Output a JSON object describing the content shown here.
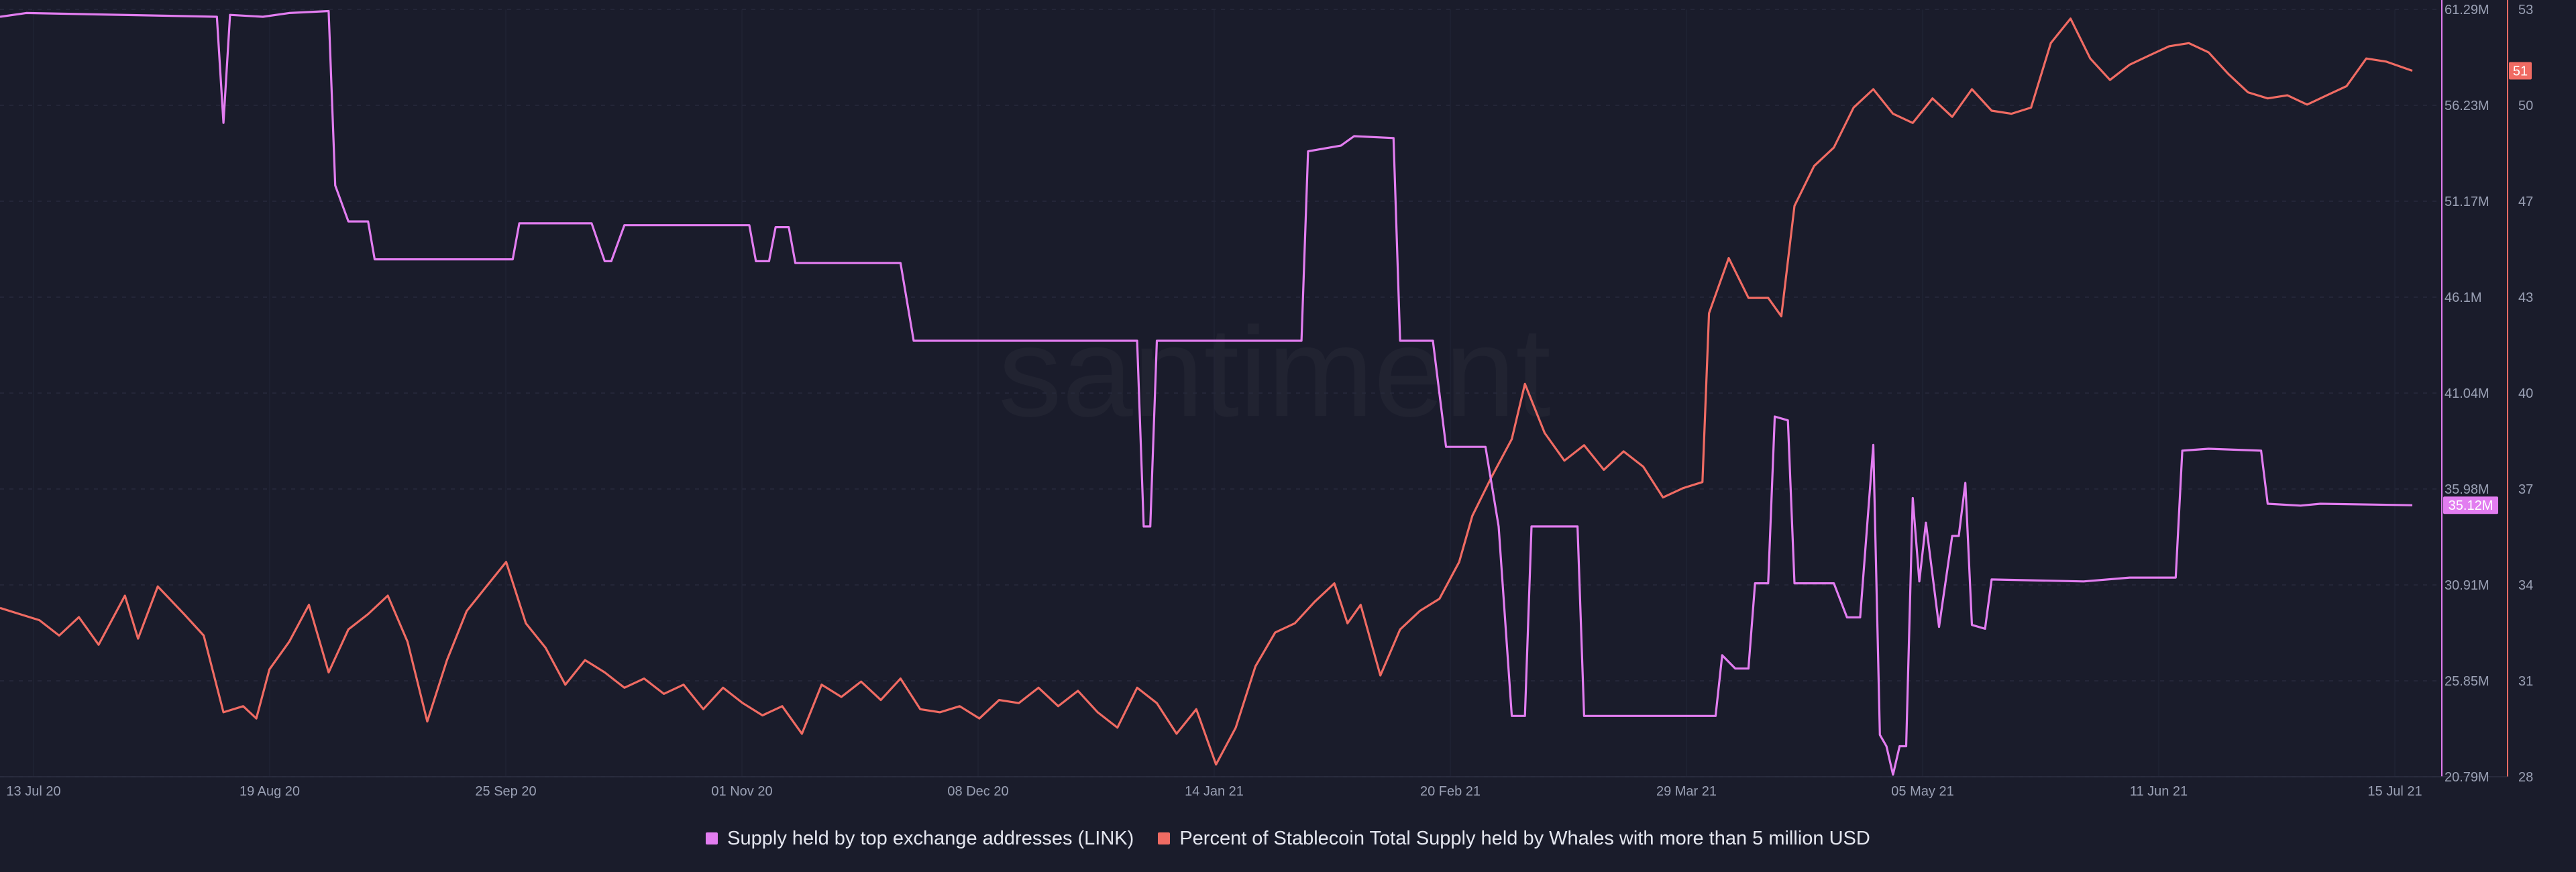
{
  "chart_data": {
    "type": "line",
    "watermark": "santiment",
    "x_ticks": [
      "13 Jul 20",
      "19 Aug 20",
      "25 Sep 20",
      "01 Nov 20",
      "08 Dec 20",
      "14 Jan 21",
      "20 Feb 21",
      "29 Mar 21",
      "05 May 21",
      "11 Jun 21",
      "15 Jul 21"
    ],
    "x_range": [
      "2020-07-13",
      "2021-07-15"
    ],
    "left_axis": {
      "ticks": [
        "61.29M",
        "56.23M",
        "51.17M",
        "46.1M",
        "41.04M",
        "35.98M",
        "30.91M",
        "25.85M",
        "20.79M"
      ],
      "range": [
        20.79,
        61.29
      ],
      "unit": "M"
    },
    "right_axis": {
      "ticks": [
        "53",
        "50",
        "47",
        "43",
        "40",
        "37",
        "34",
        "31",
        "28"
      ],
      "range": [
        28,
        53
      ]
    },
    "series": [
      {
        "name": "Supply held by top exchange addresses (LINK)",
        "color": "#e27df0",
        "axis": "left",
        "current_label": "35.12M",
        "points": [
          [
            "2020-07-13",
            60.9
          ],
          [
            "2020-07-17",
            61.1
          ],
          [
            "2020-08-15",
            60.9
          ],
          [
            "2020-08-16",
            55.3
          ],
          [
            "2020-08-17",
            61.0
          ],
          [
            "2020-08-22",
            60.9
          ],
          [
            "2020-08-26",
            61.1
          ],
          [
            "2020-09-01",
            61.2
          ],
          [
            "2020-09-02",
            52.0
          ],
          [
            "2020-09-04",
            50.1
          ],
          [
            "2020-09-07",
            50.1
          ],
          [
            "2020-09-08",
            48.1
          ],
          [
            "2020-09-29",
            48.1
          ],
          [
            "2020-09-30",
            50.0
          ],
          [
            "2020-10-11",
            50.0
          ],
          [
            "2020-10-13",
            48.0
          ],
          [
            "2020-10-14",
            48.0
          ],
          [
            "2020-10-16",
            49.9
          ],
          [
            "2020-11-04",
            49.9
          ],
          [
            "2020-11-05",
            48.0
          ],
          [
            "2020-11-07",
            48.0
          ],
          [
            "2020-11-08",
            49.8
          ],
          [
            "2020-11-10",
            49.8
          ],
          [
            "2020-11-11",
            47.9
          ],
          [
            "2020-11-27",
            47.9
          ],
          [
            "2020-11-29",
            43.8
          ],
          [
            "2021-01-02",
            43.8
          ],
          [
            "2021-01-03",
            34.0
          ],
          [
            "2021-01-04",
            34.0
          ],
          [
            "2021-01-05",
            43.8
          ],
          [
            "2021-01-27",
            43.8
          ],
          [
            "2021-01-28",
            53.8
          ],
          [
            "2021-02-02",
            54.1
          ],
          [
            "2021-02-04",
            54.6
          ],
          [
            "2021-02-10",
            54.5
          ],
          [
            "2021-02-11",
            43.8
          ],
          [
            "2021-02-16",
            43.8
          ],
          [
            "2021-02-18",
            38.2
          ],
          [
            "2021-02-24",
            38.2
          ],
          [
            "2021-02-26",
            34.0
          ],
          [
            "2021-02-28",
            24.0
          ],
          [
            "2021-03-02",
            24.0
          ],
          [
            "2021-03-03",
            34.0
          ],
          [
            "2021-03-10",
            34.0
          ],
          [
            "2021-03-11",
            24.0
          ],
          [
            "2021-03-31",
            24.0
          ],
          [
            "2021-04-01",
            27.2
          ],
          [
            "2021-04-03",
            26.5
          ],
          [
            "2021-04-05",
            26.5
          ],
          [
            "2021-04-06",
            31.0
          ],
          [
            "2021-04-08",
            31.0
          ],
          [
            "2021-04-09",
            39.8
          ],
          [
            "2021-04-11",
            39.6
          ],
          [
            "2021-04-12",
            31.0
          ],
          [
            "2021-04-18",
            31.0
          ],
          [
            "2021-04-20",
            29.2
          ],
          [
            "2021-04-22",
            29.2
          ],
          [
            "2021-04-24",
            38.3
          ],
          [
            "2021-04-25",
            23.0
          ],
          [
            "2021-04-26",
            22.4
          ],
          [
            "2021-04-27",
            20.9
          ],
          [
            "2021-04-28",
            22.4
          ],
          [
            "2021-04-29",
            22.4
          ],
          [
            "2021-04-30",
            35.5
          ],
          [
            "2021-05-01",
            31.1
          ],
          [
            "2021-05-02",
            34.2
          ],
          [
            "2021-05-04",
            28.7
          ],
          [
            "2021-05-06",
            33.5
          ],
          [
            "2021-05-07",
            33.5
          ],
          [
            "2021-05-08",
            36.3
          ],
          [
            "2021-05-09",
            28.8
          ],
          [
            "2021-05-11",
            28.6
          ],
          [
            "2021-05-12",
            31.2
          ],
          [
            "2021-05-26",
            31.1
          ],
          [
            "2021-06-02",
            31.3
          ],
          [
            "2021-06-09",
            31.3
          ],
          [
            "2021-06-10",
            38.0
          ],
          [
            "2021-06-14",
            38.1
          ],
          [
            "2021-06-22",
            38.0
          ],
          [
            "2021-06-23",
            35.2
          ],
          [
            "2021-06-28",
            35.1
          ],
          [
            "2021-07-01",
            35.2
          ],
          [
            "2021-07-15",
            35.12
          ]
        ]
      },
      {
        "name": "Percent of Stablecoin Total Supply held by Whales with more than 5 million USD",
        "color": "#f06b63",
        "axis": "right",
        "current_label": "51",
        "points": [
          [
            "2020-07-13",
            33.5
          ],
          [
            "2020-07-16",
            33.3
          ],
          [
            "2020-07-19",
            33.1
          ],
          [
            "2020-07-22",
            32.6
          ],
          [
            "2020-07-25",
            33.2
          ],
          [
            "2020-07-28",
            32.3
          ],
          [
            "2020-08-01",
            33.9
          ],
          [
            "2020-08-03",
            32.5
          ],
          [
            "2020-08-06",
            34.2
          ],
          [
            "2020-08-10",
            33.3
          ],
          [
            "2020-08-13",
            32.6
          ],
          [
            "2020-08-16",
            30.1
          ],
          [
            "2020-08-19",
            30.3
          ],
          [
            "2020-08-21",
            29.9
          ],
          [
            "2020-08-23",
            31.5
          ],
          [
            "2020-08-26",
            32.4
          ],
          [
            "2020-08-29",
            33.6
          ],
          [
            "2020-09-01",
            31.4
          ],
          [
            "2020-09-04",
            32.8
          ],
          [
            "2020-09-07",
            33.3
          ],
          [
            "2020-09-10",
            33.9
          ],
          [
            "2020-09-13",
            32.4
          ],
          [
            "2020-09-16",
            29.8
          ],
          [
            "2020-09-19",
            31.8
          ],
          [
            "2020-09-22",
            33.4
          ],
          [
            "2020-09-25",
            34.2
          ],
          [
            "2020-09-28",
            35.0
          ],
          [
            "2020-10-01",
            33.0
          ],
          [
            "2020-10-04",
            32.2
          ],
          [
            "2020-10-07",
            31.0
          ],
          [
            "2020-10-10",
            31.8
          ],
          [
            "2020-10-13",
            31.4
          ],
          [
            "2020-10-16",
            30.9
          ],
          [
            "2020-10-19",
            31.2
          ],
          [
            "2020-10-22",
            30.7
          ],
          [
            "2020-10-25",
            31.0
          ],
          [
            "2020-10-28",
            30.2
          ],
          [
            "2020-10-31",
            30.9
          ],
          [
            "2020-11-03",
            30.4
          ],
          [
            "2020-11-06",
            30.0
          ],
          [
            "2020-11-09",
            30.3
          ],
          [
            "2020-11-12",
            29.4
          ],
          [
            "2020-11-15",
            31.0
          ],
          [
            "2020-11-18",
            30.6
          ],
          [
            "2020-11-21",
            31.1
          ],
          [
            "2020-11-24",
            30.5
          ],
          [
            "2020-11-27",
            31.2
          ],
          [
            "2020-11-30",
            30.2
          ],
          [
            "2020-12-03",
            30.1
          ],
          [
            "2020-12-06",
            30.3
          ],
          [
            "2020-12-09",
            29.9
          ],
          [
            "2020-12-12",
            30.5
          ],
          [
            "2020-12-15",
            30.4
          ],
          [
            "2020-12-18",
            30.9
          ],
          [
            "2020-12-21",
            30.3
          ],
          [
            "2020-12-24",
            30.8
          ],
          [
            "2020-12-27",
            30.1
          ],
          [
            "2020-12-30",
            29.6
          ],
          [
            "2021-01-02",
            30.9
          ],
          [
            "2021-01-05",
            30.4
          ],
          [
            "2021-01-08",
            29.4
          ],
          [
            "2021-01-11",
            30.2
          ],
          [
            "2021-01-14",
            28.4
          ],
          [
            "2021-01-17",
            29.6
          ],
          [
            "2021-01-20",
            31.6
          ],
          [
            "2021-01-23",
            32.7
          ],
          [
            "2021-01-26",
            33.0
          ],
          [
            "2021-01-29",
            33.7
          ],
          [
            "2021-02-01",
            34.3
          ],
          [
            "2021-02-03",
            33.0
          ],
          [
            "2021-02-05",
            33.6
          ],
          [
            "2021-02-08",
            31.3
          ],
          [
            "2021-02-11",
            32.8
          ],
          [
            "2021-02-14",
            33.4
          ],
          [
            "2021-02-17",
            33.8
          ],
          [
            "2021-02-20",
            35.0
          ],
          [
            "2021-02-22",
            36.5
          ],
          [
            "2021-02-25",
            37.8
          ],
          [
            "2021-02-28",
            39.0
          ],
          [
            "2021-03-02",
            40.8
          ],
          [
            "2021-03-05",
            39.2
          ],
          [
            "2021-03-08",
            38.3
          ],
          [
            "2021-03-11",
            38.8
          ],
          [
            "2021-03-14",
            38.0
          ],
          [
            "2021-03-17",
            38.6
          ],
          [
            "2021-03-20",
            38.1
          ],
          [
            "2021-03-23",
            37.1
          ],
          [
            "2021-03-26",
            37.4
          ],
          [
            "2021-03-29",
            37.6
          ],
          [
            "2021-03-30",
            43.1
          ],
          [
            "2021-04-02",
            44.9
          ],
          [
            "2021-04-05",
            43.6
          ],
          [
            "2021-04-08",
            43.6
          ],
          [
            "2021-04-10",
            43.0
          ],
          [
            "2021-04-12",
            46.6
          ],
          [
            "2021-04-15",
            47.9
          ],
          [
            "2021-04-18",
            48.5
          ],
          [
            "2021-04-21",
            49.8
          ],
          [
            "2021-04-24",
            50.4
          ],
          [
            "2021-04-27",
            49.6
          ],
          [
            "2021-04-30",
            49.3
          ],
          [
            "2021-05-03",
            50.1
          ],
          [
            "2021-05-06",
            49.5
          ],
          [
            "2021-05-09",
            50.4
          ],
          [
            "2021-05-12",
            49.7
          ],
          [
            "2021-05-15",
            49.6
          ],
          [
            "2021-05-18",
            49.8
          ],
          [
            "2021-05-21",
            51.9
          ],
          [
            "2021-05-24",
            52.7
          ],
          [
            "2021-05-27",
            51.4
          ],
          [
            "2021-05-30",
            50.7
          ],
          [
            "2021-06-02",
            51.2
          ],
          [
            "2021-06-05",
            51.5
          ],
          [
            "2021-06-08",
            51.8
          ],
          [
            "2021-06-11",
            51.9
          ],
          [
            "2021-06-14",
            51.6
          ],
          [
            "2021-06-17",
            50.9
          ],
          [
            "2021-06-20",
            50.3
          ],
          [
            "2021-06-23",
            50.1
          ],
          [
            "2021-06-26",
            50.2
          ],
          [
            "2021-06-29",
            49.9
          ],
          [
            "2021-07-02",
            50.2
          ],
          [
            "2021-07-05",
            50.5
          ],
          [
            "2021-07-08",
            51.4
          ],
          [
            "2021-07-11",
            51.3
          ],
          [
            "2021-07-15",
            51.0
          ]
        ]
      }
    ],
    "grid": true,
    "legend_position": "bottom-center"
  }
}
